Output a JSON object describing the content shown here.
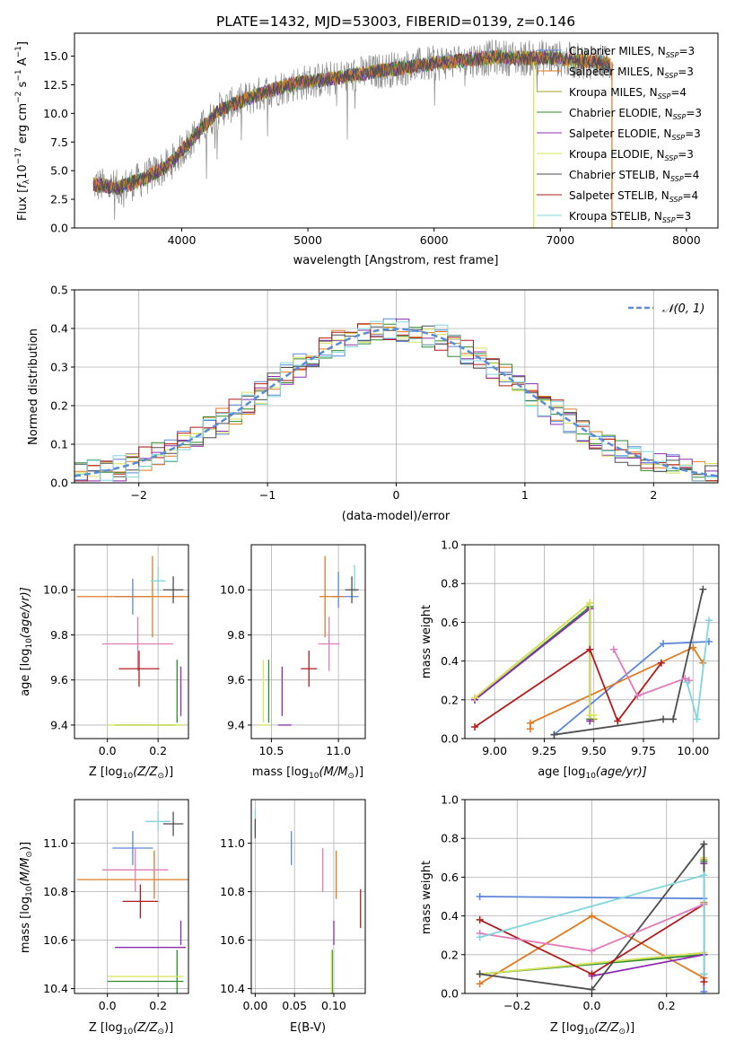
{
  "figure_title": "PLATE=1432, MJD=53003, FIBERID=0139, z=0.146",
  "colors": {
    "chabrier_miles": "#5b86d9",
    "salpeter_miles": "#e07b22",
    "kroupa_miles": "#a59b2b",
    "chabrier_elodie": "#2f8a2f",
    "salpeter_elodie": "#8b2cb0",
    "kroupa_elodie": "#d7e35a",
    "chabrier_stelib": "#4d4d4d",
    "salpeter_stelib": "#b21b1b",
    "kroupa_stelib": "#7fd6dc",
    "pink": "#e27ab8",
    "normal": "#5b8dd6"
  },
  "chart_data": [
    {
      "id": "spectrum",
      "type": "line",
      "title": "PLATE=1432, MJD=53003, FIBERID=0139, z=0.146",
      "xlabel": "wavelength [Angstrom, rest frame]",
      "ylabel_main": "Flux [",
      "ylabel_sym": "f",
      "ylabel_sub": "λ",
      "ylabel_rest": "10",
      "ylabel_exp1": "−17",
      "ylabel_mid": " erg cm",
      "ylabel_exp2": "−2",
      "ylabel_s": " s",
      "ylabel_exp3": "−1",
      "ylabel_a": " A",
      "ylabel_exp4": "−1",
      "ylabel_end": "]",
      "xlim": [
        3150,
        8250
      ],
      "ylim": [
        0,
        17
      ],
      "xticks": [
        4000,
        5000,
        6000,
        7000,
        8000
      ],
      "yticks": [
        0.0,
        2.5,
        5.0,
        7.5,
        10.0,
        12.5,
        15.0
      ],
      "ytick_labels": [
        "0.0",
        "2.5",
        "5.0",
        "7.5",
        "10.0",
        "12.5",
        "15.0"
      ],
      "legend_position": "upper right",
      "legend": [
        {
          "label": "Chabrier MILES, N",
          "sub": "SSP",
          "val": "=3",
          "color": "#5b86d9"
        },
        {
          "label": "Salpeter MILES, N",
          "sub": "SSP",
          "val": "=3",
          "color": "#e07b22"
        },
        {
          "label": "Kroupa MILES, N",
          "sub": "SSP",
          "val": "=4",
          "color": "#a59b2b"
        },
        {
          "label": "Chabrier ELODIE, N",
          "sub": "SSP",
          "val": "=3",
          "color": "#2f8a2f"
        },
        {
          "label": "Salpeter ELODIE, N",
          "sub": "SSP",
          "val": "=3",
          "color": "#8b2cb0"
        },
        {
          "label": "Kroupa ELODIE, N",
          "sub": "SSP",
          "val": "=3",
          "color": "#d7e35a"
        },
        {
          "label": "Chabrier STELIB, N",
          "sub": "SSP",
          "val": "=4",
          "color": "#4d4d4d"
        },
        {
          "label": "Salpeter STELIB, N",
          "sub": "SSP",
          "val": "=4",
          "color": "#b21b1b"
        },
        {
          "label": "Kroupa STELIB, N",
          "sub": "SSP",
          "val": "=3",
          "color": "#7fd6dc"
        }
      ],
      "continuum": {
        "x": [
          3300,
          3500,
          3700,
          3900,
          4100,
          4300,
          4500,
          4700,
          4900,
          5100,
          5300,
          5500,
          5700,
          5900,
          6100,
          6300,
          6500,
          6700,
          6900,
          7100,
          7300,
          7400
        ],
        "y": [
          3.8,
          3.5,
          4.3,
          5.5,
          8.0,
          10.3,
          11.2,
          12.0,
          12.6,
          12.9,
          13.2,
          13.6,
          13.9,
          14.2,
          14.5,
          14.7,
          14.9,
          14.8,
          14.9,
          14.6,
          14.5,
          14.3
        ]
      },
      "drops": [
        {
          "x": 6790,
          "color": "#d7e35a"
        },
        {
          "x": 7410,
          "color": "#e07b22"
        }
      ]
    },
    {
      "id": "residuals",
      "type": "line",
      "xlabel": "(data-model)/error",
      "ylabel": "Normed distribution",
      "xlim": [
        -2.5,
        2.5
      ],
      "ylim": [
        0,
        0.5
      ],
      "xticks": [
        -2,
        -1,
        0,
        1,
        2
      ],
      "xtick_labels": [
        "−2",
        "−1",
        "0",
        "1",
        "2"
      ],
      "yticks": [
        0.0,
        0.1,
        0.2,
        0.3,
        0.4,
        0.5
      ],
      "ytick_labels": [
        "0.0",
        "0.1",
        "0.2",
        "0.3",
        "0.4",
        "0.5"
      ],
      "bin_width": 0.1,
      "legend_position": "upper right",
      "legend_label": "𝒩(0, 1)",
      "hist_colors": [
        "#5b86d9",
        "#e07b22",
        "#2f8a2f",
        "#8b2cb0",
        "#d7e35a",
        "#4d4d4d",
        "#b21b1b",
        "#7fd6dc"
      ]
    },
    {
      "id": "z_age",
      "type": "scatter",
      "xlabel": "Z [log",
      "xlabel_sub": "10",
      "xlabel_rest": "(Z/Z",
      "xlabel_sun": "⊙",
      "xlabel_end": ")]",
      "ylabel": "age  [log",
      "ylabel_sub": "10",
      "ylabel_rest": "(age/yr)]",
      "xlim": [
        -0.13,
        0.32
      ],
      "ylim": [
        9.34,
        10.2
      ],
      "xticks": [
        0.0,
        0.2
      ],
      "xtick_labels": [
        "0.0",
        "0.2"
      ],
      "yticks": [
        9.4,
        9.6,
        9.8,
        10.0
      ],
      "ytick_labels": [
        "9.4",
        "9.6",
        "9.8",
        "10.0"
      ],
      "points": [
        {
          "x": 0.1,
          "y": 9.97,
          "xe": 0.07,
          "ye": 0.08,
          "color": "#5b86d9"
        },
        {
          "x": 0.19,
          "y": 9.97,
          "xe": 0.31,
          "ye": 0.0,
          "color": "#e07b22"
        },
        {
          "x": 0.178,
          "y": 9.97,
          "xe": 0.0,
          "ye": 0.18,
          "color": "#e07b22"
        },
        {
          "x": 0.2,
          "y": 10.04,
          "xe": 0.03,
          "ye": 0.06,
          "color": "#7fd6dc"
        },
        {
          "x": 0.26,
          "y": 10.0,
          "xe": 0.04,
          "ye": 0.06,
          "color": "#4d4d4d"
        },
        {
          "x": 0.12,
          "y": 9.76,
          "xe": 0.14,
          "ye": 0.12,
          "color": "#e27ab8"
        },
        {
          "x": 0.125,
          "y": 9.65,
          "xe": 0.08,
          "ye": 0.08,
          "color": "#b21b1b"
        },
        {
          "x": 0.275,
          "y": 9.55,
          "xe": 0.0,
          "ye": 0.14,
          "color": "#2f8a2f"
        },
        {
          "x": 0.29,
          "y": 9.55,
          "xe": 0.0,
          "ye": 0.11,
          "color": "#8b2cb0"
        },
        {
          "x": 0.15,
          "y": 9.4,
          "xe": 0.12,
          "ye": 0.0,
          "color": "#2f8a2f"
        },
        {
          "x": 0.15,
          "y": 9.4,
          "xe": 0.15,
          "ye": 0.0,
          "color": "#d7e35a"
        }
      ]
    },
    {
      "id": "mass_age",
      "type": "scatter",
      "xlabel": "mass [log",
      "xlabel_sub": "10",
      "xlabel_rest": "(M/M",
      "xlabel_sun": "⊙",
      "xlabel_end": ")]",
      "xlim": [
        10.35,
        11.2
      ],
      "ylim": [
        9.34,
        10.2
      ],
      "xticks": [
        10.5,
        11.0
      ],
      "xtick_labels": [
        "10.5",
        "11.0"
      ],
      "yticks": [
        9.4,
        9.6,
        9.8,
        10.0
      ],
      "ytick_labels": [
        "9.4",
        "9.6",
        "9.8",
        "10.0"
      ],
      "points": [
        {
          "x": 11.05,
          "y": 9.97,
          "xe": 0.1,
          "ye": 0.0,
          "color": "#5b86d9"
        },
        {
          "x": 11.0,
          "y": 10.0,
          "xe": 0.0,
          "ye": 0.08,
          "color": "#5b86d9"
        },
        {
          "x": 10.9,
          "y": 9.97,
          "xe": 0.0,
          "ye": 0.18,
          "color": "#e07b22"
        },
        {
          "x": 10.95,
          "y": 9.97,
          "xe": 0.09,
          "ye": 0.0,
          "color": "#e07b22"
        },
        {
          "x": 11.12,
          "y": 10.05,
          "xe": 0.0,
          "ye": 0.06,
          "color": "#7fd6dc"
        },
        {
          "x": 11.1,
          "y": 10.0,
          "xe": 0.05,
          "ye": 0.06,
          "color": "#4d4d4d"
        },
        {
          "x": 10.93,
          "y": 9.76,
          "xe": 0.08,
          "ye": 0.12,
          "color": "#e27ab8"
        },
        {
          "x": 10.78,
          "y": 9.65,
          "xe": 0.06,
          "ye": 0.08,
          "color": "#b21b1b"
        },
        {
          "x": 10.58,
          "y": 9.55,
          "xe": 0.0,
          "ye": 0.11,
          "color": "#8b2cb0"
        },
        {
          "x": 10.48,
          "y": 9.55,
          "xe": 0.0,
          "ye": 0.14,
          "color": "#2f8a2f"
        },
        {
          "x": 10.44,
          "y": 9.55,
          "xe": 0.0,
          "ye": 0.14,
          "color": "#d7e35a"
        },
        {
          "x": 10.6,
          "y": 9.4,
          "xe": 0.05,
          "ye": 0.0,
          "color": "#8b2cb0"
        },
        {
          "x": 10.45,
          "y": 9.4,
          "xe": 0.04,
          "ye": 0.0,
          "color": "#d7e35a"
        }
      ]
    },
    {
      "id": "age_weight",
      "type": "line",
      "xlabel": "age  [log",
      "xlabel_sub": "10",
      "xlabel_rest": "(age/yr)]",
      "ylabel": "mass weight",
      "xlim": [
        8.85,
        10.13
      ],
      "ylim": [
        0,
        1
      ],
      "xticks": [
        9.0,
        9.25,
        9.5,
        9.75,
        10.0
      ],
      "xtick_labels": [
        "9.00",
        "9.25",
        "9.50",
        "9.75",
        "10.00"
      ],
      "yticks": [
        0,
        0.2,
        0.4,
        0.6,
        0.8,
        1.0
      ],
      "ytick_labels": [
        "0.0",
        "0.2",
        "0.4",
        "0.6",
        "0.8",
        "1.0"
      ],
      "series": [
        {
          "color": "#5b86d9",
          "x": [
            9.3,
            9.85,
            10.08
          ],
          "y": [
            0.02,
            0.49,
            0.5
          ]
        },
        {
          "color": "#e07b22",
          "x": [
            9.18,
            9.18,
            10.0,
            10.05
          ],
          "y": [
            0.05,
            0.08,
            0.47,
            0.39
          ]
        },
        {
          "color": "#a59b2b",
          "x": [
            8.9,
            9.48,
            9.48,
            9.5
          ],
          "y": [
            0.21,
            0.7,
            0.1,
            0.1
          ]
        },
        {
          "color": "#2f8a2f",
          "x": [
            8.9,
            9.48,
            9.48
          ],
          "y": [
            0.2,
            0.68,
            0.1
          ]
        },
        {
          "color": "#8b2cb0",
          "x": [
            8.9,
            9.48,
            9.48
          ],
          "y": [
            0.2,
            0.67,
            0.09
          ]
        },
        {
          "color": "#d7e35a",
          "x": [
            8.9,
            9.48,
            9.48,
            9.5
          ],
          "y": [
            0.21,
            0.7,
            0.12,
            0.12
          ]
        },
        {
          "color": "#4d4d4d",
          "x": [
            9.3,
            9.85,
            9.9,
            10.05
          ],
          "y": [
            0.02,
            0.1,
            0.1,
            0.77
          ]
        },
        {
          "color": "#b21b1b",
          "x": [
            8.9,
            9.48,
            9.62,
            9.84
          ],
          "y": [
            0.06,
            0.46,
            0.09,
            0.39
          ]
        },
        {
          "color": "#e27ab8",
          "x": [
            9.6,
            9.72,
            9.96,
            9.98
          ],
          "y": [
            0.46,
            0.22,
            0.31,
            0.3
          ]
        },
        {
          "color": "#7fd6dc",
          "x": [
            9.97,
            10.02,
            10.08
          ],
          "y": [
            0.29,
            0.1,
            0.61
          ]
        }
      ]
    },
    {
      "id": "z_mass",
      "type": "scatter",
      "xlabel": "Z [log",
      "xlabel_sub": "10",
      "xlabel_rest": "(Z/Z",
      "xlabel_sun": "⊙",
      "xlabel_end": ")]",
      "ylabel": "mass [log",
      "ylabel_sub": "10",
      "ylabel_rest": "(M/M",
      "ylabel_sun": "⊙",
      "ylabel_end": ")]",
      "xlim": [
        -0.13,
        0.32
      ],
      "ylim": [
        10.38,
        11.18
      ],
      "xticks": [
        0.0,
        0.2
      ],
      "xtick_labels": [
        "0.0",
        "0.2"
      ],
      "yticks": [
        10.4,
        10.6,
        10.8,
        11.0
      ],
      "ytick_labels": [
        "10.4",
        "10.6",
        "10.8",
        "11.0"
      ],
      "points": [
        {
          "x": 0.1,
          "y": 10.98,
          "xe": 0.08,
          "ye": 0.07,
          "color": "#5b86d9"
        },
        {
          "x": 0.19,
          "y": 10.85,
          "xe": 0.31,
          "ye": 0.0,
          "color": "#e07b22"
        },
        {
          "x": 0.185,
          "y": 10.87,
          "xe": 0.0,
          "ye": 0.1,
          "color": "#e07b22"
        },
        {
          "x": 0.2,
          "y": 11.09,
          "xe": 0.05,
          "ye": 0.04,
          "color": "#7fd6dc"
        },
        {
          "x": 0.26,
          "y": 11.08,
          "xe": 0.04,
          "ye": 0.05,
          "color": "#4d4d4d"
        },
        {
          "x": 0.11,
          "y": 10.89,
          "xe": 0.13,
          "ye": 0.09,
          "color": "#e27ab8"
        },
        {
          "x": 0.13,
          "y": 10.76,
          "xe": 0.07,
          "ye": 0.07,
          "color": "#b21b1b"
        },
        {
          "x": 0.29,
          "y": 10.63,
          "xe": 0.0,
          "ye": 0.05,
          "color": "#8b2cb0"
        },
        {
          "x": 0.17,
          "y": 10.57,
          "xe": 0.14,
          "ye": 0.0,
          "color": "#8b2cb0"
        },
        {
          "x": 0.275,
          "y": 10.47,
          "xe": 0.0,
          "ye": 0.09,
          "color": "#2f8a2f"
        },
        {
          "x": 0.15,
          "y": 10.45,
          "xe": 0.15,
          "ye": 0.0,
          "color": "#d7e35a"
        },
        {
          "x": 0.15,
          "y": 10.43,
          "xe": 0.15,
          "ye": 0.0,
          "color": "#2f8a2f"
        }
      ]
    },
    {
      "id": "ebv_mass",
      "type": "scatter",
      "xlabel": "E(B-V)",
      "xlim": [
        -0.005,
        0.14
      ],
      "ylim": [
        10.38,
        11.18
      ],
      "xticks": [
        0.0,
        0.05,
        0.1
      ],
      "xtick_labels": [
        "0.00",
        "0.05",
        "0.10"
      ],
      "yticks": [
        10.4,
        10.6,
        10.8,
        11.0
      ],
      "ytick_labels": [
        "10.4",
        "10.6",
        "10.8",
        "11.0"
      ],
      "points": [
        {
          "x": 0.0,
          "y": 11.09,
          "xe": 0.0,
          "ye": 0.05,
          "color": "#7fd6dc"
        },
        {
          "x": 0.0,
          "y": 11.06,
          "xe": 0.0,
          "ye": 0.04,
          "color": "#4d4d4d"
        },
        {
          "x": 0.046,
          "y": 10.98,
          "xe": 0.0,
          "ye": 0.07,
          "color": "#5b86d9"
        },
        {
          "x": 0.086,
          "y": 10.89,
          "xe": 0.0,
          "ye": 0.09,
          "color": "#e27ab8"
        },
        {
          "x": 0.103,
          "y": 10.87,
          "xe": 0.0,
          "ye": 0.1,
          "color": "#e07b22"
        },
        {
          "x": 0.134,
          "y": 10.73,
          "xe": 0.0,
          "ye": 0.08,
          "color": "#b21b1b"
        },
        {
          "x": 0.1,
          "y": 10.63,
          "xe": 0.0,
          "ye": 0.05,
          "color": "#8b2cb0"
        },
        {
          "x": 0.098,
          "y": 10.47,
          "xe": 0.0,
          "ye": 0.09,
          "color": "#2f8a2f"
        },
        {
          "x": 0.097,
          "y": 10.45,
          "xe": 0.0,
          "ye": 0.1,
          "color": "#d7e35a"
        }
      ]
    },
    {
      "id": "z_weight",
      "type": "line",
      "xlabel": "Z [log",
      "xlabel_sub": "10",
      "xlabel_rest": "(Z/Z",
      "xlabel_sun": "⊙",
      "xlabel_end": ")]",
      "ylabel": "mass weight",
      "xlim": [
        -0.34,
        0.34
      ],
      "ylim": [
        0,
        1
      ],
      "xticks": [
        -0.2,
        0.0,
        0.2
      ],
      "xtick_labels": [
        "−0.2",
        "0.0",
        "0.2"
      ],
      "yticks": [
        0,
        0.2,
        0.4,
        0.6,
        0.8,
        1.0
      ],
      "ytick_labels": [
        "0.0",
        "0.2",
        "0.4",
        "0.6",
        "0.8",
        "1.0"
      ],
      "series": [
        {
          "color": "#5b86d9",
          "x": [
            -0.3,
            0.3,
            0.3
          ],
          "y": [
            0.5,
            0.49,
            0.01
          ]
        },
        {
          "color": "#e07b22",
          "x": [
            -0.3,
            0.0,
            0.3,
            0.3
          ],
          "y": [
            0.05,
            0.4,
            0.08,
            0.47
          ]
        },
        {
          "color": "#a59b2b",
          "x": [
            -0.3,
            0.3,
            0.3
          ],
          "y": [
            0.1,
            0.21,
            0.69
          ]
        },
        {
          "color": "#2f8a2f",
          "x": [
            -0.3,
            0.3,
            0.3
          ],
          "y": [
            0.1,
            0.2,
            0.68
          ]
        },
        {
          "color": "#8b2cb0",
          "x": [
            0.0,
            0.3,
            0.3
          ],
          "y": [
            0.09,
            0.2,
            0.67
          ]
        },
        {
          "color": "#d7e35a",
          "x": [
            -0.3,
            0.3,
            0.3
          ],
          "y": [
            0.1,
            0.21,
            0.7
          ]
        },
        {
          "color": "#4d4d4d",
          "x": [
            -0.3,
            0.0,
            0.3,
            0.3
          ],
          "y": [
            0.1,
            0.02,
            0.77,
            0.1
          ]
        },
        {
          "color": "#b21b1b",
          "x": [
            -0.3,
            0.0,
            0.3,
            0.3
          ],
          "y": [
            0.38,
            0.1,
            0.46,
            0.06
          ]
        },
        {
          "color": "#e27ab8",
          "x": [
            -0.3,
            0.0,
            0.3
          ],
          "y": [
            0.31,
            0.22,
            0.46
          ]
        },
        {
          "color": "#7fd6dc",
          "x": [
            -0.3,
            0.3,
            0.3
          ],
          "y": [
            0.29,
            0.61,
            0.1
          ]
        }
      ]
    }
  ]
}
